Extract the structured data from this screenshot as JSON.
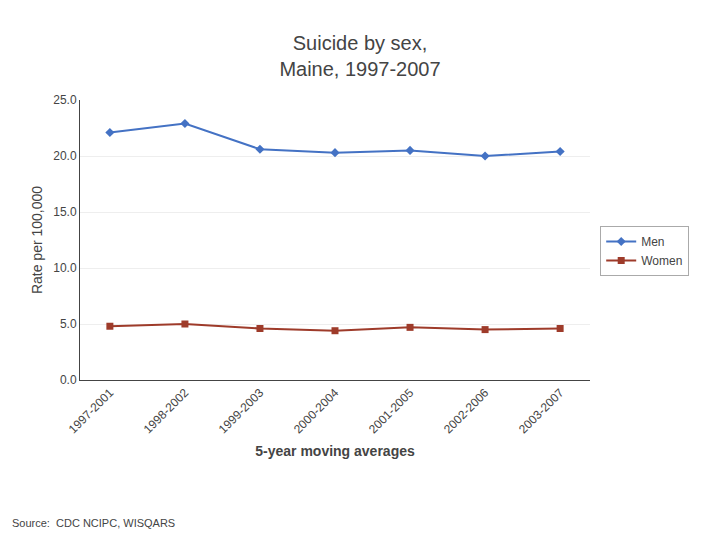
{
  "chart_data": {
    "type": "line",
    "title": "Suicide by sex,\nMaine, 1997-2007",
    "xlabel": "5-year moving averages",
    "ylabel": "Rate per 100,000",
    "annotations": [
      "Source:  CDC NCIPC, WISQARS"
    ],
    "categories": [
      "1997-2001",
      "1998-2002",
      "1999-2003",
      "2000-2004",
      "2001-2005",
      "2002-2006",
      "2003-2007"
    ],
    "series": [
      {
        "name": "Men",
        "color": "#4472C4",
        "marker": "diamond",
        "values": [
          22.1,
          22.9,
          20.6,
          20.3,
          20.5,
          20.0,
          20.4
        ]
      },
      {
        "name": "Women",
        "color": "#9E3B2A",
        "marker": "square",
        "values": [
          4.8,
          5.0,
          4.6,
          4.4,
          4.7,
          4.5,
          4.6
        ]
      }
    ],
    "ylim": [
      0.0,
      25.0
    ],
    "yticks": [
      {
        "value": 0,
        "label": "0.0"
      },
      {
        "value": 5,
        "label": "5.0"
      },
      {
        "value": 10,
        "label": "10.0"
      },
      {
        "value": 15,
        "label": "15.0"
      },
      {
        "value": 20,
        "label": "20.0"
      },
      {
        "value": 25,
        "label": "25.0"
      }
    ],
    "grid": true,
    "legend": "right"
  }
}
